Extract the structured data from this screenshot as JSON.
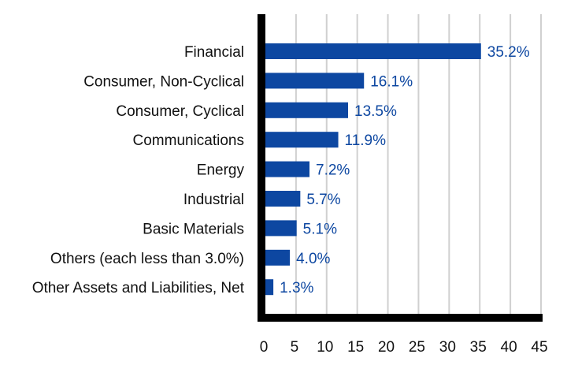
{
  "chart_data": {
    "type": "bar",
    "orientation": "horizontal",
    "categories": [
      "Financial",
      "Consumer, Non-Cyclical",
      "Consumer, Cyclical",
      "Communications",
      "Energy",
      "Industrial",
      "Basic Materials",
      "Others (each less than 3.0%)",
      "Other Assets and Liabilities, Net"
    ],
    "values": [
      35.2,
      16.1,
      13.5,
      11.9,
      7.2,
      5.7,
      5.1,
      4.0,
      1.3
    ],
    "value_labels": [
      "35.2%",
      "16.1%",
      "13.5%",
      "11.9%",
      "7.2%",
      "5.7%",
      "5.1%",
      "4.0%",
      "1.3%"
    ],
    "title": "",
    "xlabel": "",
    "ylabel": "",
    "xlim": [
      0,
      45
    ],
    "xticks": [
      0,
      5,
      10,
      15,
      20,
      25,
      30,
      35,
      40,
      45
    ],
    "grid": "vertical",
    "legend": "none",
    "colors": {
      "bar": "#0d47a1",
      "value_label": "#0d47a1",
      "grid": "#d0d0d0",
      "axis": "#000000"
    }
  }
}
